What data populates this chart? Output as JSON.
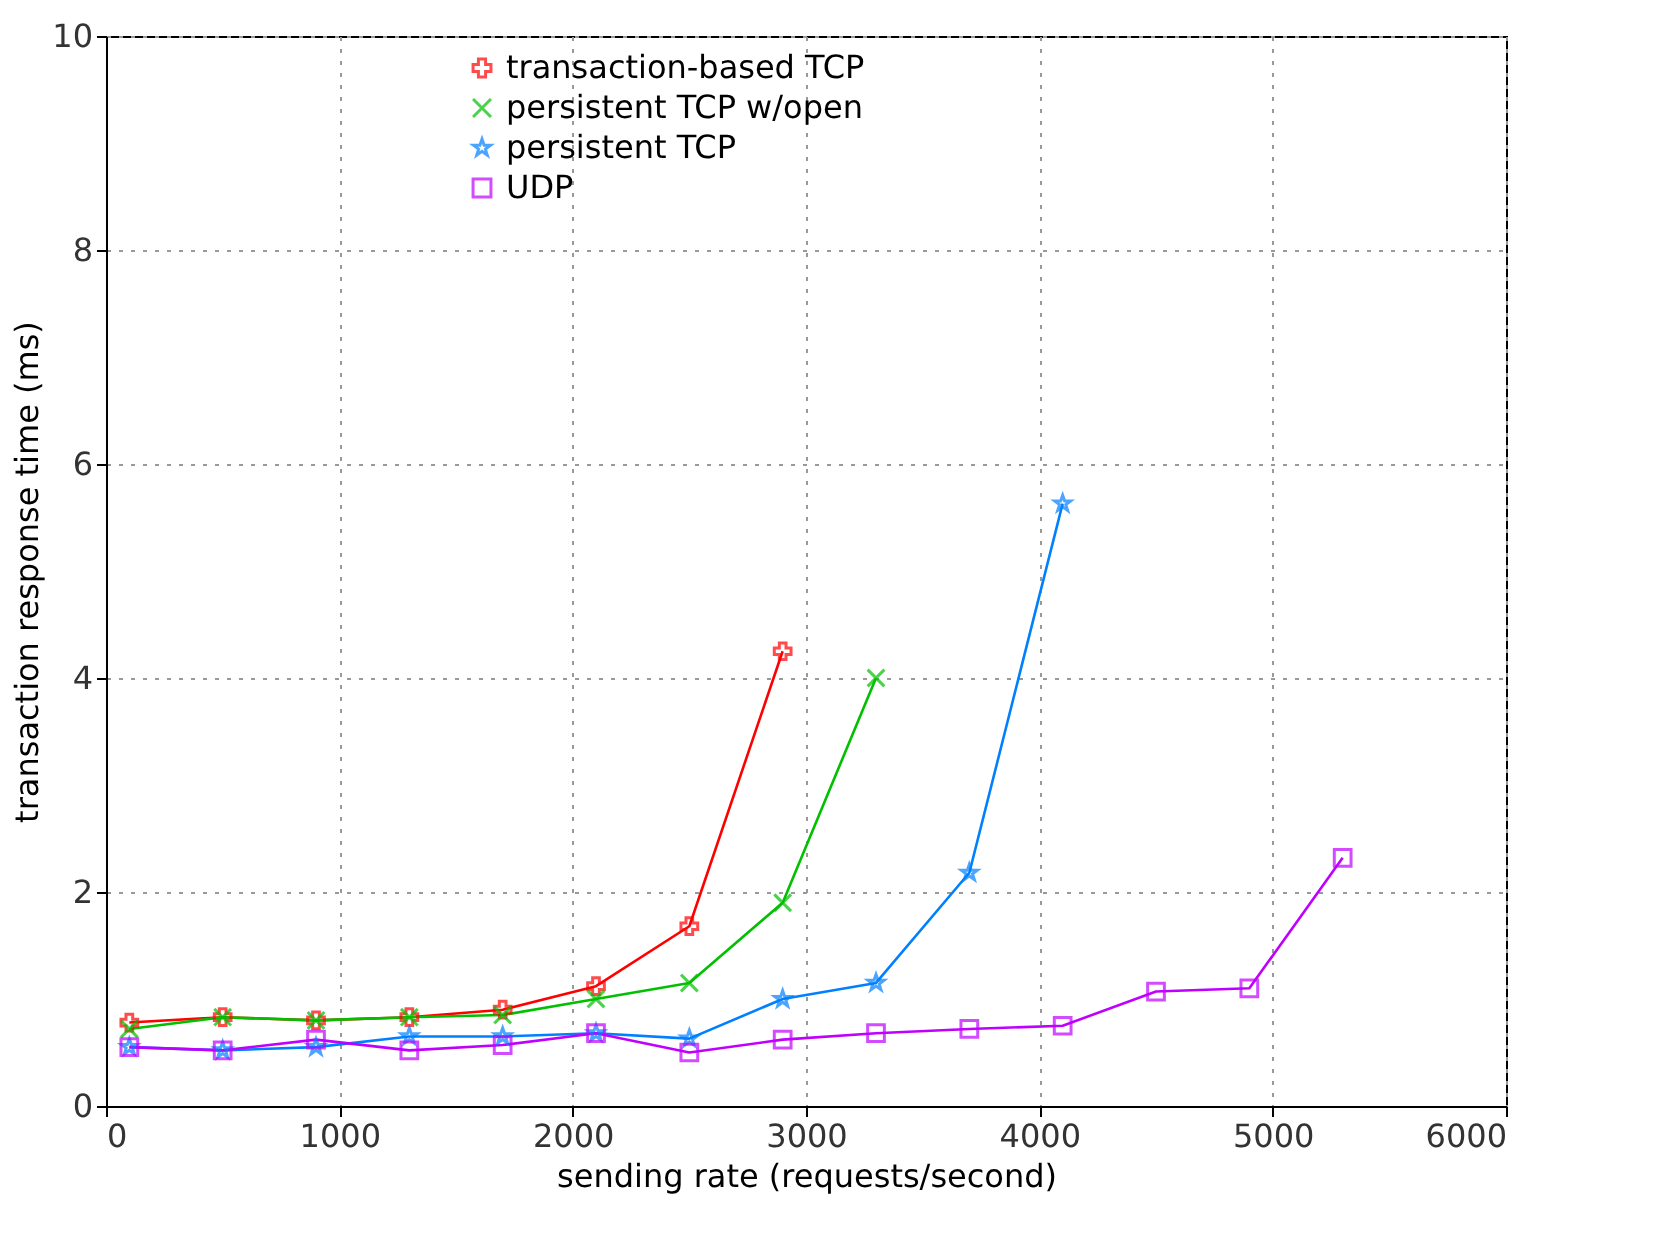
{
  "chart_data": {
    "type": "line",
    "xlabel": "sending rate (requests/second)",
    "ylabel": "transaction response time (ms)",
    "xlim": [
      0,
      6000
    ],
    "xticks": [
      0,
      1000,
      2000,
      3000,
      4000,
      5000,
      6000
    ],
    "ylim": [
      0,
      10
    ],
    "yticks": [
      0,
      2,
      4,
      6,
      8,
      10
    ],
    "grid": true,
    "legend": "top",
    "line_style": "solid",
    "series": [
      {
        "name": "transaction-based TCP",
        "color": "#ff0000",
        "marker": "cross",
        "x": [
          100,
          500,
          900,
          1300,
          1700,
          2100,
          2500,
          2900
        ],
        "values": [
          0.78,
          0.83,
          0.8,
          0.83,
          0.9,
          1.12,
          1.68,
          4.25
        ]
      },
      {
        "name": "persistent TCP w/open",
        "color": "#00c000",
        "marker": "x",
        "x": [
          100,
          500,
          900,
          1300,
          1700,
          2100,
          2500,
          2900,
          3300
        ],
        "values": [
          0.72,
          0.83,
          0.8,
          0.83,
          0.85,
          1.0,
          1.15,
          1.9,
          4.0
        ]
      },
      {
        "name": "persistent TCP",
        "color": "#0080ff",
        "marker": "star",
        "x": [
          100,
          500,
          900,
          1300,
          1700,
          2100,
          2500,
          2900,
          3300,
          3700,
          4100
        ],
        "values": [
          0.55,
          0.52,
          0.55,
          0.65,
          0.65,
          0.68,
          0.63,
          1.0,
          1.15,
          2.18,
          5.63
        ]
      },
      {
        "name": "UDP",
        "color": "#c000ff",
        "marker": "square",
        "x": [
          100,
          500,
          900,
          1300,
          1700,
          2100,
          2500,
          2900,
          3300,
          3700,
          4100,
          4500,
          4900,
          5300
        ],
        "values": [
          0.55,
          0.52,
          0.62,
          0.52,
          0.57,
          0.68,
          0.5,
          0.62,
          0.68,
          0.72,
          0.75,
          1.07,
          1.1,
          2.32
        ]
      }
    ]
  }
}
